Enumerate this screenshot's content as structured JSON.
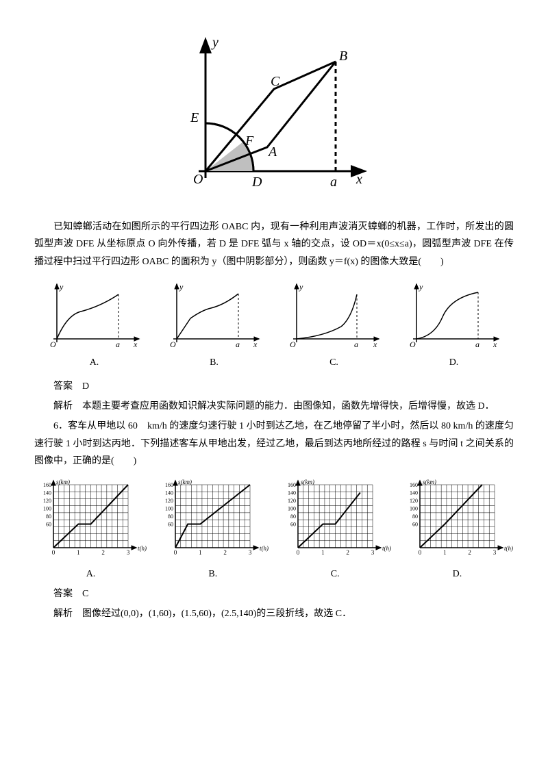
{
  "mainFigure": {
    "axisY": "y",
    "axisX": "x",
    "O": "O",
    "A": "A",
    "B": "B",
    "C": "C",
    "D": "D",
    "E": "E",
    "F": "F",
    "a": "a",
    "stroke": "#000000",
    "fill_shade": "#bfbfbf",
    "background": "#ffffff"
  },
  "q5": {
    "text1": "已知蟑螂活动在如图所示的平行四边形 OABC 内，现有一种利用声波消灭蟑螂的机器，工作时，所发出的圆弧型声波 DFE 从坐标原点 O 向外传播，若 D 是 DFE 弧与 x 轴的交点，设 OD＝x(0≤x≤a)，圆弧型声波 DFE 在传播过程中扫过平行四边形 OABC 的面积为 y（图中阴影部分），则函数 y＝f(x) 的图像大致是(　　)",
    "optionLabels": [
      "A.",
      "B.",
      "C.",
      "D."
    ],
    "axis_y": "y",
    "axis_x": "x",
    "axis_O": "O",
    "axis_a": "a",
    "answerLabel": "答案",
    "answer": "D",
    "analysisLabel": "解析",
    "analysis": "本题主要考查应用函数知识解决实际问题的能力．由图像知，函数先增得快，后增得慢，故选 D．"
  },
  "q6": {
    "numText": "6．客车从甲地以 60　km/h 的速度匀速行驶 1 小时到达乙地，在乙地停留了半小时，然后以 80 km/h 的速度匀速行驶 1 小时到达丙地．下列描述客车从甲地出发，经过乙地，最后到达丙地所经过的路程 s 与时间 t 之间关系的图像中，正确的是(　　)",
    "yLabel": "s(km)",
    "xLabel": "t(h)",
    "yTicks": [
      "160",
      "140",
      "120",
      "100",
      "80",
      "60"
    ],
    "xTicks": [
      "0",
      "1",
      "2",
      "3"
    ],
    "yValuesMax": 160,
    "xMax": 3,
    "gridCols": 14,
    "gridRows": 9,
    "optionLabels": [
      "A.",
      "B.",
      "C.",
      "D."
    ],
    "paths": {
      "A": [
        [
          0,
          0
        ],
        [
          1,
          60
        ],
        [
          1.5,
          60
        ],
        [
          3,
          160
        ]
      ],
      "B": [
        [
          0,
          0
        ],
        [
          0.5,
          60
        ],
        [
          1,
          60
        ],
        [
          3,
          160
        ]
      ],
      "C": [
        [
          0,
          0
        ],
        [
          1,
          60
        ],
        [
          1.5,
          60
        ],
        [
          2.5,
          140
        ]
      ],
      "D": [
        [
          0,
          0
        ],
        [
          1,
          60
        ],
        [
          2.5,
          160
        ]
      ]
    },
    "answerLabel": "答案",
    "answer": "C",
    "analysisLabel": "解析",
    "analysis": "图像经过(0,0)，(1,60)，(1.5,60)，(2.5,140)的三段折线，故选 C．"
  }
}
